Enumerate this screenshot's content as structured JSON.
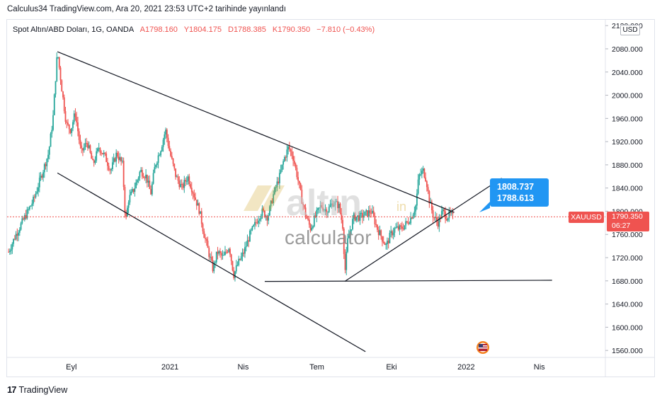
{
  "header": {
    "published": "Calculus34 TradingView.com, Ara 20, 2021 23:53 UTC+2 tarihinde yayınlandı"
  },
  "legend": {
    "symbol": "Spot Altın/ABD Doları, 1G, OANDA",
    "open": "A1798.160",
    "high": "Y1804.175",
    "low": "D1788.385",
    "close": "K1790.350",
    "change": "−7.810 (−0.43%)"
  },
  "currency": "USD",
  "price_label": {
    "symbol": "XAUUSD",
    "price": "1790.350",
    "countdown": "06:27"
  },
  "callout": {
    "upper": "1808.737",
    "lower": "1788.613"
  },
  "watermark": {
    "brand": "altın",
    "suffix": "in",
    "sub": "calculator"
  },
  "footer": {
    "brand": "TradingView"
  },
  "colors": {
    "up": "#26a69a",
    "down": "#ef5350",
    "accent": "#2196f3"
  },
  "chart_data": {
    "type": "candlestick",
    "y_ticks": [
      "2120.000",
      "2080.000",
      "2040.000",
      "2000.000",
      "1960.000",
      "1920.000",
      "1880.000",
      "1840.000",
      "1800.000",
      "1760.000",
      "1720.000",
      "1680.000",
      "1640.000",
      "1600.000",
      "1560.000"
    ],
    "x_ticks": [
      {
        "label": "Eyl",
        "t": 2020.667
      },
      {
        "label": "2021",
        "t": 2021.0
      },
      {
        "label": "Nis",
        "t": 2021.247
      },
      {
        "label": "Tem",
        "t": 2021.496
      },
      {
        "label": "Eki",
        "t": 2021.748
      },
      {
        "label": "2022",
        "t": 2022.0
      },
      {
        "label": "Nis",
        "t": 2022.247
      }
    ],
    "ylim": [
      1548,
      2130
    ],
    "xlim": [
      2020.45,
      2022.47
    ],
    "price_path": [
      [
        2020.455,
        1730
      ],
      [
        2020.48,
        1760
      ],
      [
        2020.51,
        1790
      ],
      [
        2020.54,
        1820
      ],
      [
        2020.565,
        1860
      ],
      [
        2020.59,
        1900
      ],
      [
        2020.605,
        1960
      ],
      [
        2020.615,
        2040
      ],
      [
        2020.62,
        2075
      ],
      [
        2020.635,
        2010
      ],
      [
        2020.65,
        1950
      ],
      [
        2020.665,
        1940
      ],
      [
        2020.68,
        1970
      ],
      [
        2020.7,
        1900
      ],
      [
        2020.72,
        1920
      ],
      [
        2020.74,
        1880
      ],
      [
        2020.76,
        1910
      ],
      [
        2020.78,
        1895
      ],
      [
        2020.8,
        1870
      ],
      [
        2020.82,
        1900
      ],
      [
        2020.84,
        1880
      ],
      [
        2020.85,
        1780
      ],
      [
        2020.86,
        1820
      ],
      [
        2020.88,
        1840
      ],
      [
        2020.9,
        1870
      ],
      [
        2020.92,
        1860
      ],
      [
        2020.935,
        1830
      ],
      [
        2020.95,
        1880
      ],
      [
        2020.97,
        1910
      ],
      [
        2020.985,
        1940
      ],
      [
        2021.0,
        1900
      ],
      [
        2021.02,
        1860
      ],
      [
        2021.04,
        1840
      ],
      [
        2021.06,
        1860
      ],
      [
        2021.08,
        1830
      ],
      [
        2021.1,
        1800
      ],
      [
        2021.115,
        1760
      ],
      [
        2021.13,
        1730
      ],
      [
        2021.145,
        1700
      ],
      [
        2021.16,
        1730
      ],
      [
        2021.18,
        1720
      ],
      [
        2021.2,
        1740
      ],
      [
        2021.215,
        1690
      ],
      [
        2021.23,
        1710
      ],
      [
        2021.25,
        1730
      ],
      [
        2021.27,
        1760
      ],
      [
        2021.29,
        1780
      ],
      [
        2021.31,
        1800
      ],
      [
        2021.33,
        1790
      ],
      [
        2021.35,
        1830
      ],
      [
        2021.37,
        1860
      ],
      [
        2021.385,
        1890
      ],
      [
        2021.4,
        1910
      ],
      [
        2021.415,
        1895
      ],
      [
        2021.43,
        1860
      ],
      [
        2021.445,
        1820
      ],
      [
        2021.46,
        1790
      ],
      [
        2021.475,
        1770
      ],
      [
        2021.49,
        1790
      ],
      [
        2021.51,
        1810
      ],
      [
        2021.53,
        1800
      ],
      [
        2021.55,
        1815
      ],
      [
        2021.57,
        1810
      ],
      [
        2021.585,
        1770
      ],
      [
        2021.59,
        1690
      ],
      [
        2021.6,
        1750
      ],
      [
        2021.62,
        1790
      ],
      [
        2021.64,
        1790
      ],
      [
        2021.66,
        1795
      ],
      [
        2021.68,
        1800
      ],
      [
        2021.7,
        1770
      ],
      [
        2021.715,
        1755
      ],
      [
        2021.73,
        1740
      ],
      [
        2021.745,
        1760
      ],
      [
        2021.76,
        1770
      ],
      [
        2021.78,
        1770
      ],
      [
        2021.8,
        1780
      ],
      [
        2021.815,
        1790
      ],
      [
        2021.83,
        1810
      ],
      [
        2021.84,
        1860
      ],
      [
        2021.855,
        1870
      ],
      [
        2021.865,
        1855
      ],
      [
        2021.875,
        1820
      ],
      [
        2021.89,
        1790
      ],
      [
        2021.905,
        1780
      ],
      [
        2021.92,
        1800
      ],
      [
        2021.935,
        1790
      ],
      [
        2021.945,
        1795
      ],
      [
        2021.955,
        1790
      ]
    ],
    "trendlines": [
      {
        "name": "upper",
        "from": [
          2020.62,
          2075
        ],
        "to": [
          2021.96,
          1798
        ]
      },
      {
        "name": "lower",
        "from": [
          2020.62,
          1866
        ],
        "to": [
          2021.66,
          1558
        ]
      },
      {
        "name": "base",
        "from": [
          2021.32,
          1679
        ],
        "to": [
          2022.29,
          1681
        ]
      },
      {
        "name": "rising",
        "from": [
          2021.59,
          1679
        ],
        "to": [
          2022.12,
          1857
        ]
      }
    ],
    "current_price": 1790.35
  }
}
